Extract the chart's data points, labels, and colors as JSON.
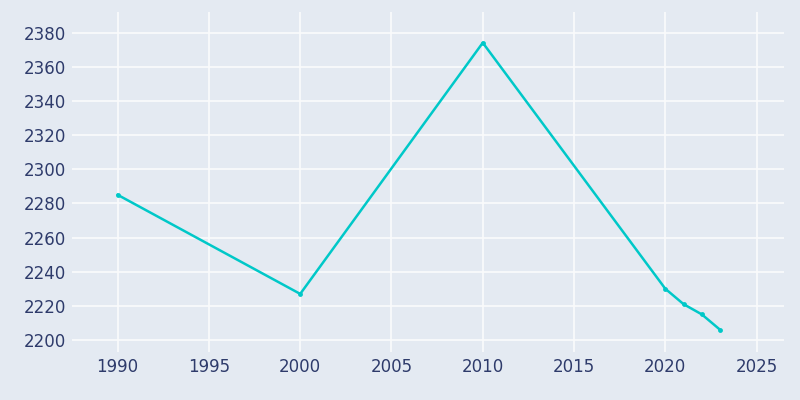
{
  "years": [
    1990,
    2000,
    2010,
    2020,
    2021,
    2022,
    2023
  ],
  "population": [
    2285,
    2227,
    2374,
    2230,
    2221,
    2215,
    2206
  ],
  "line_color": "#00C8C8",
  "marker_color": "#00C8C8",
  "background_color": "#E4EAF2",
  "grid_color": "#FAFBFC",
  "xlim": [
    1987.5,
    2026.5
  ],
  "ylim": [
    2193,
    2392
  ],
  "xticks": [
    1990,
    1995,
    2000,
    2005,
    2010,
    2015,
    2020,
    2025
  ],
  "yticks": [
    2200,
    2220,
    2240,
    2260,
    2280,
    2300,
    2320,
    2340,
    2360,
    2380
  ],
  "tick_color": "#2E3B6B",
  "tick_fontsize": 12
}
